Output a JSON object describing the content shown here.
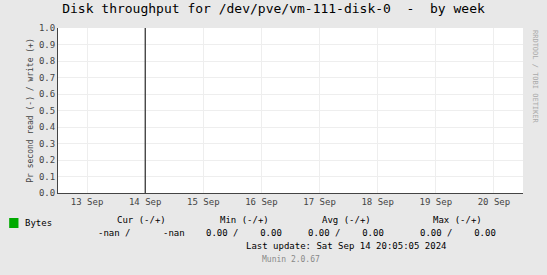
{
  "chart_data": {
    "type": "line",
    "title": "Disk throughput for /dev/pve/vm-111-disk-0  -  by week",
    "ylabel": "Pr second read (-) / write (+)",
    "categories": [
      "13 Sep",
      "14 Sep",
      "15 Sep",
      "16 Sep",
      "17 Sep",
      "18 Sep",
      "19 Sep",
      "20 Sep"
    ],
    "series": [
      {
        "name": "Bytes",
        "color": "#00aa00",
        "values": [
          null,
          null,
          null,
          null,
          null,
          null,
          null,
          null
        ]
      }
    ],
    "ylim": [
      0.0,
      1.0
    ],
    "yticks": [
      {
        "value": 0.0,
        "label": "0.0"
      },
      {
        "value": 0.1,
        "label": "0.1"
      },
      {
        "value": 0.2,
        "label": "0.2"
      },
      {
        "value": 0.3,
        "label": "0.3"
      },
      {
        "value": 0.4,
        "label": "0.4"
      },
      {
        "value": 0.5,
        "label": "0.5"
      },
      {
        "value": 0.6,
        "label": "0.6"
      },
      {
        "value": 0.7,
        "label": "0.7"
      },
      {
        "value": 0.8,
        "label": "0.8"
      },
      {
        "value": 0.9,
        "label": "0.9"
      },
      {
        "value": 1.0,
        "label": "1.0"
      }
    ],
    "grid": true,
    "vline": {
      "x": "14 Sep",
      "color": "#000000"
    },
    "annotations": [
      [
        "Cur (-/+)",
        "Min (-/+)",
        "Avg (-/+)",
        "Max (-/+)"
      ],
      [
        "-nan /      -nan",
        "0.00 /    0.00",
        "0.00 /    0.00",
        "0.00 /    0.00"
      ],
      [
        "Last update: Sat Sep 14 20:05:05 2024"
      ],
      [
        "Munin 2.0.67"
      ],
      [
        "RRDTOOL / TOBI OETIKER"
      ]
    ]
  }
}
